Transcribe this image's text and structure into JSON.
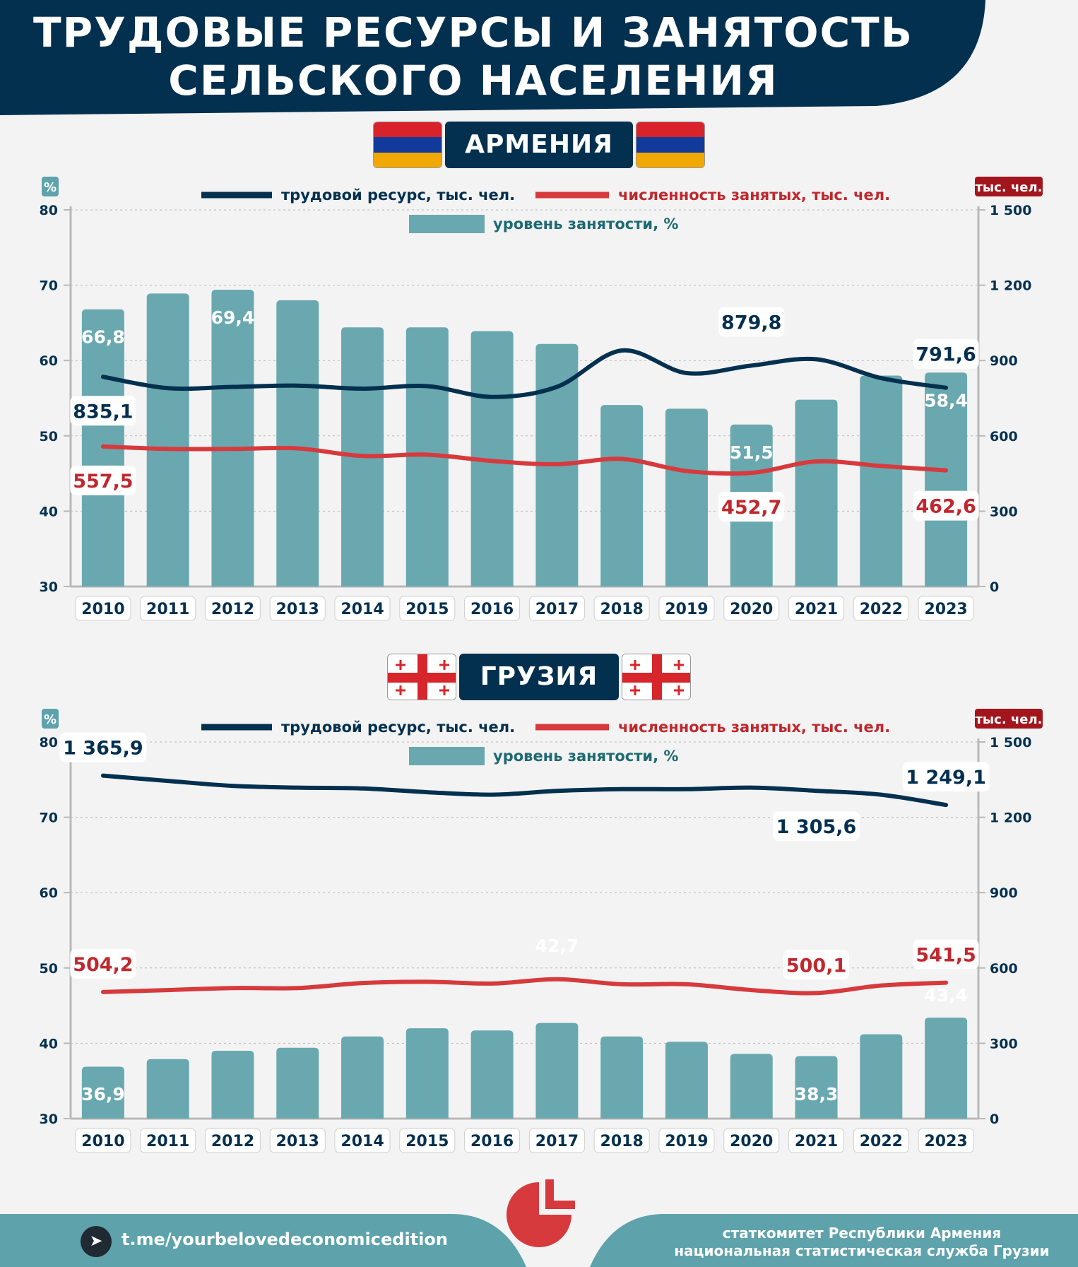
{
  "title": {
    "line1": "ТРУДОВЫЕ РЕСУРСЫ И ЗАНЯТОСТЬ",
    "line2": "СЕЛЬСКОГО НАСЕЛЕНИЯ"
  },
  "colors": {
    "navy": "#04304f",
    "red": "#d63a3d",
    "teal": "#6aa8b0",
    "dark_red_badge": "#a3151d",
    "footer_teal": "#5ea2ab"
  },
  "footer": {
    "telegram_link": "t.me/yourbelovedeconomicedition",
    "source_line1": "статкомитет Республики Армения",
    "source_line2": "национальная статистическая служба Грузии"
  },
  "chart_data": [
    {
      "type": "bar",
      "title": "АРМЕНИЯ",
      "left_axis_label": "%",
      "right_axis_label": "тыс. чел.",
      "ylim_left": [
        30,
        80
      ],
      "ylim_right": [
        0,
        1500
      ],
      "left_ticks": [
        "30",
        "40",
        "50",
        "60",
        "70",
        "80"
      ],
      "right_ticks": [
        "0",
        "300",
        "600",
        "900",
        "1 200",
        "1 500"
      ],
      "categories": [
        "2010",
        "2011",
        "2012",
        "2013",
        "2014",
        "2015",
        "2016",
        "2017",
        "2018",
        "2019",
        "2020",
        "2021",
        "2022",
        "2023"
      ],
      "legend": {
        "line1": "трудовой ресурс, тыс. чел.",
        "line2": "численность занятых, тыс. чел.",
        "bar": "уровень занятости, %",
        "placement": "top"
      },
      "series": [
        {
          "name": "уровень занятости, %",
          "kind": "bar",
          "axis": "left",
          "values": [
            66.8,
            68.9,
            69.4,
            68.0,
            64.4,
            64.4,
            63.9,
            62.2,
            54.1,
            53.6,
            51.5,
            54.8,
            58.0,
            58.4
          ],
          "labels": {
            "0": "66,8",
            "2": "69,4",
            "10": "51,5",
            "13": "58,4"
          }
        },
        {
          "name": "трудовой ресурс, тыс. чел.",
          "kind": "line",
          "axis": "right",
          "values": [
            835.1,
            790,
            795,
            800,
            788,
            798,
            755,
            795,
            940,
            850,
            879.8,
            905,
            830,
            791.6
          ],
          "labels": {
            "0": "835,1",
            "10": "879,8",
            "13": "791,6"
          }
        },
        {
          "name": "численность занятых, тыс. чел.",
          "kind": "line",
          "axis": "right",
          "values": [
            557.5,
            548,
            548,
            550,
            520,
            525,
            500,
            487,
            508,
            460,
            452.7,
            498,
            480,
            462.6
          ],
          "labels": {
            "0": "557,5",
            "10": "452,7",
            "13": "462,6"
          }
        }
      ]
    },
    {
      "type": "bar",
      "title": "ГРУЗИЯ",
      "left_axis_label": "%",
      "right_axis_label": "тыс. чел.",
      "ylim_left": [
        30,
        80
      ],
      "ylim_right": [
        0,
        1500
      ],
      "left_ticks": [
        "30",
        "40",
        "50",
        "60",
        "70",
        "80"
      ],
      "right_ticks": [
        "0",
        "300",
        "600",
        "900",
        "1 200",
        "1 500"
      ],
      "categories": [
        "2010",
        "2011",
        "2012",
        "2013",
        "2014",
        "2015",
        "2016",
        "2017",
        "2018",
        "2019",
        "2020",
        "2021",
        "2022",
        "2023"
      ],
      "legend": {
        "line1": "трудовой ресурс, тыс. чел.",
        "line2": "численность занятых, тыс. чел.",
        "bar": "уровень занятости, %",
        "placement": "top"
      },
      "series": [
        {
          "name": "уровень занятости, %",
          "kind": "bar",
          "axis": "left",
          "values": [
            36.9,
            37.9,
            39.0,
            39.4,
            40.9,
            42.0,
            41.7,
            42.7,
            40.9,
            40.2,
            38.6,
            38.3,
            41.2,
            43.4
          ],
          "labels": {
            "0": "36,9",
            "7": "42,7",
            "11": "38,3",
            "13": "43,4"
          }
        },
        {
          "name": "трудовой ресурс, тыс. чел.",
          "kind": "line",
          "axis": "right",
          "values": [
            1365.9,
            1345,
            1325,
            1318,
            1315,
            1300,
            1290,
            1305,
            1312,
            1312,
            1318,
            1305.6,
            1290,
            1249.1
          ],
          "labels": {
            "0": "1 365,9",
            "11": "1 305,6",
            "13": "1 249,1"
          }
        },
        {
          "name": "численность занятых, тыс. чел.",
          "kind": "line",
          "axis": "right",
          "values": [
            504.2,
            512,
            520,
            520,
            540,
            545,
            538,
            555,
            535,
            535,
            512,
            500.1,
            530,
            541.5
          ],
          "labels": {
            "0": "504,2",
            "11": "500,1",
            "13": "541,5"
          }
        }
      ]
    }
  ]
}
